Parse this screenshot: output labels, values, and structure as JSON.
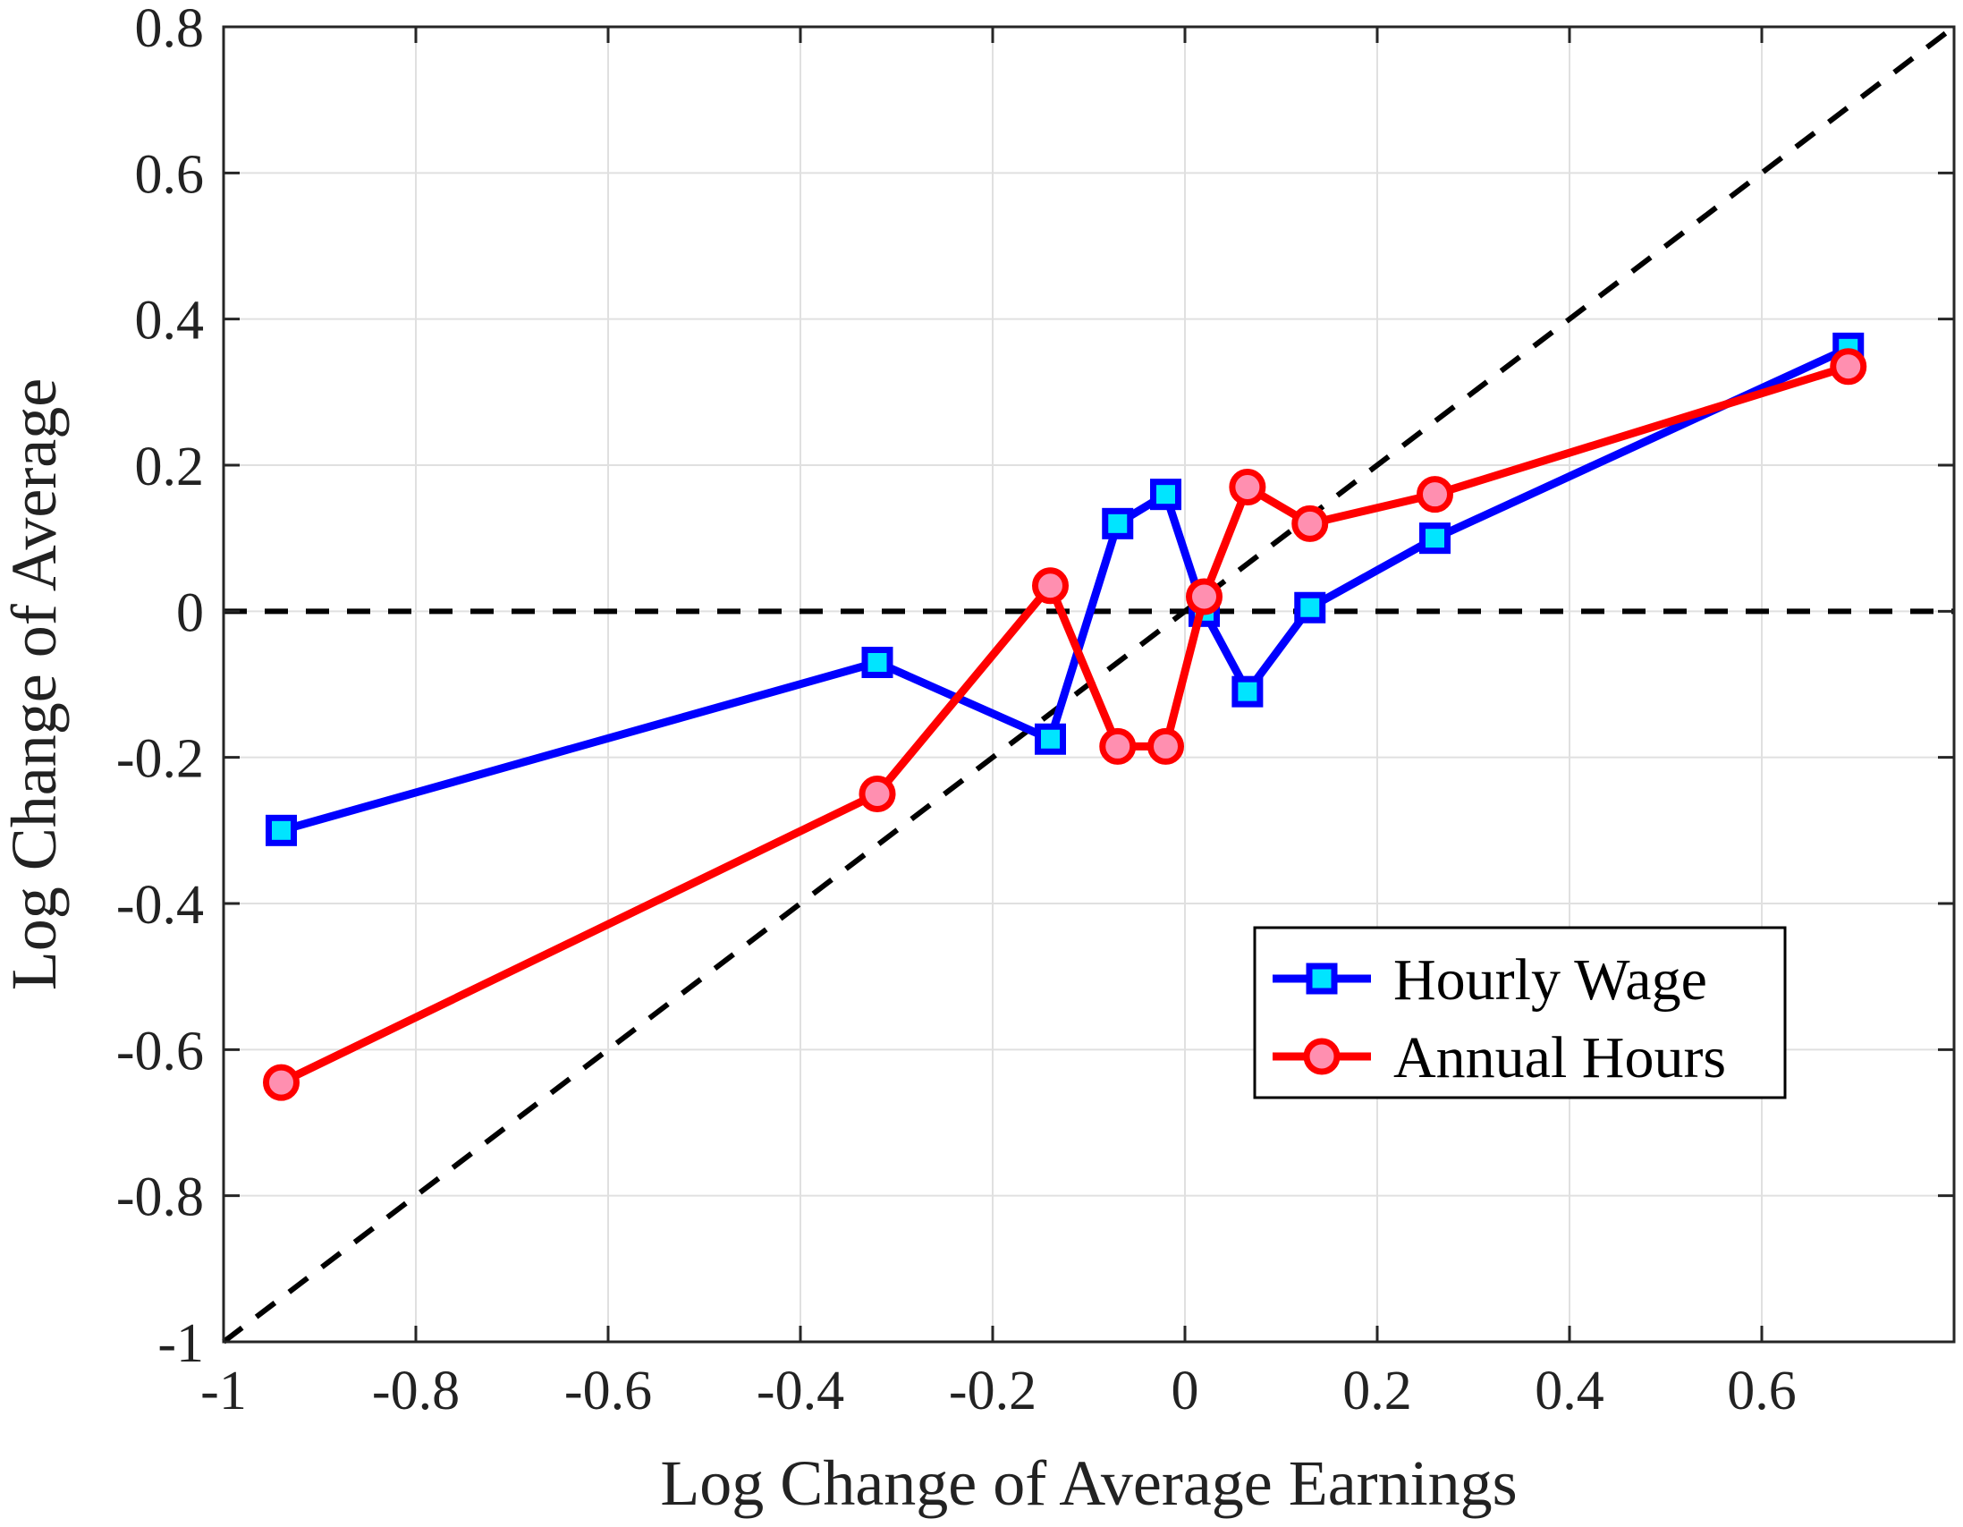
{
  "chart_data": {
    "type": "line",
    "xlabel": "Log Change of Average Earnings",
    "ylabel": "Log Change of Average",
    "xlim": [
      -1,
      0.8
    ],
    "ylim": [
      -1,
      0.8
    ],
    "xticks": [
      "-1",
      "-0.8",
      "-0.6",
      "-0.4",
      "-0.2",
      "0",
      "0.2",
      "0.4",
      "0.6"
    ],
    "yticks": [
      "-1",
      "-0.8",
      "-0.6",
      "-0.4",
      "-0.2",
      "0",
      "0.2",
      "0.4",
      "0.6",
      "0.8"
    ],
    "grid": true,
    "legend_position": "lower-right",
    "reference_lines": [
      {
        "kind": "diagonal",
        "style": "dashed",
        "color": "#000000"
      },
      {
        "kind": "horizontal",
        "y": 0,
        "style": "dashed",
        "color": "#000000"
      }
    ],
    "series": [
      {
        "name": "Hourly Wage",
        "color": "#0000ff",
        "marker": "square",
        "marker_fill": "#00e5ff",
        "x": [
          -0.94,
          -0.32,
          -0.14,
          -0.07,
          -0.02,
          0.02,
          0.065,
          0.13,
          0.26,
          0.69
        ],
        "y": [
          -0.3,
          -0.07,
          -0.175,
          0.12,
          0.16,
          0.0,
          -0.11,
          0.005,
          0.1,
          0.36
        ]
      },
      {
        "name": "Annual Hours",
        "color": "#ff0000",
        "marker": "circle",
        "marker_fill": "#ff8fb0",
        "x": [
          -0.94,
          -0.32,
          -0.14,
          -0.07,
          -0.02,
          0.02,
          0.065,
          0.13,
          0.26,
          0.69
        ],
        "y": [
          -0.645,
          -0.25,
          0.035,
          -0.185,
          -0.185,
          0.02,
          0.17,
          0.12,
          0.16,
          0.335
        ]
      }
    ]
  }
}
